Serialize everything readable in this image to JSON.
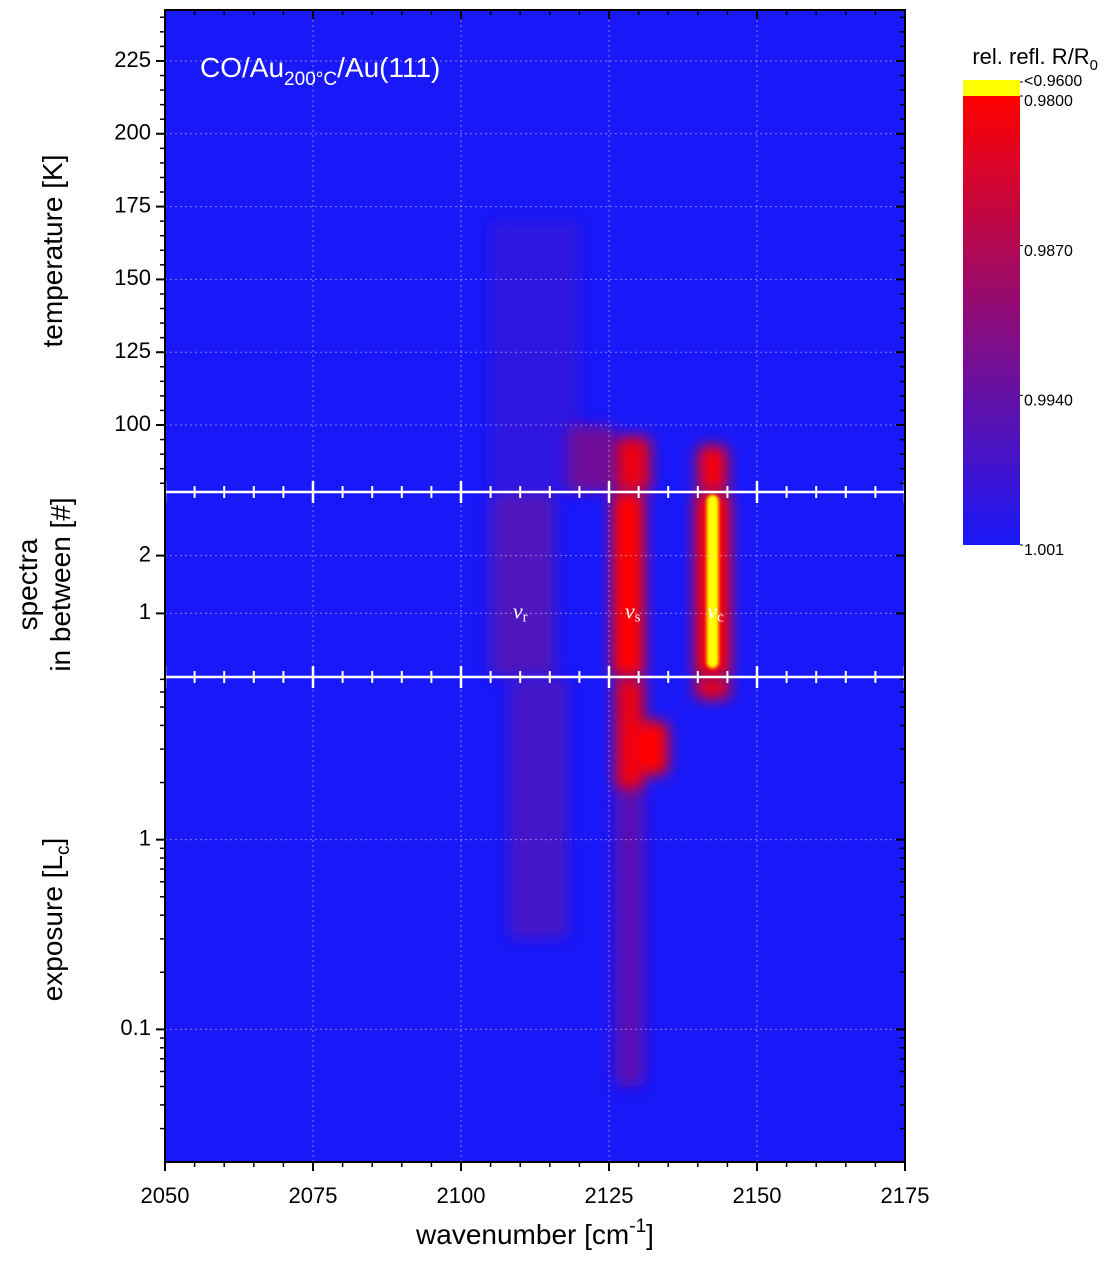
{
  "chart_data": {
    "type": "heatmap",
    "title": {
      "text": "CO/Au",
      "sub": "200°C",
      "rest": "/Au(111)"
    },
    "xlabel": {
      "text": "wavenumber [cm",
      "sup": "-1",
      "rest": "]"
    },
    "xlim": [
      2050,
      2175
    ],
    "xticks": [
      2050,
      2075,
      2100,
      2125,
      2150,
      2175
    ],
    "xminorticks": [
      2055,
      2060,
      2065,
      2070,
      2080,
      2085,
      2090,
      2095,
      2105,
      2110,
      2115,
      2120,
      2130,
      2135,
      2140,
      2145,
      2155,
      2160,
      2165,
      2170
    ],
    "grid": true,
    "panels": [
      {
        "ylabel": [
          {
            "text": "temperature [K]"
          }
        ],
        "ylim": [
          77,
          242.5
        ],
        "log": false,
        "yticks": [
          100,
          125,
          150,
          175,
          200,
          225
        ],
        "yminorticks": [
          80,
          85,
          90,
          95,
          105,
          110,
          115,
          120,
          130,
          135,
          140,
          145,
          155,
          160,
          165,
          170,
          180,
          185,
          190,
          195,
          205,
          210,
          215,
          220,
          230,
          235,
          240
        ]
      },
      {
        "ylabel": [
          {
            "text": "spectra"
          },
          {
            "text": "in between [#]"
          }
        ],
        "ylim": [
          -0.1,
          3.1
        ],
        "log": false,
        "yticks": [
          1,
          2
        ],
        "yminorticks": []
      },
      {
        "ylabel": [
          {
            "text": "exposure [L",
            "sub": "c",
            "rest": "]"
          }
        ],
        "ylim": [
          0.02,
          7.2
        ],
        "log": true,
        "yticks": [
          0.1,
          1
        ],
        "yminorticks": [
          0.03,
          0.04,
          0.05,
          0.06,
          0.07,
          0.08,
          0.09,
          0.2,
          0.3,
          0.4,
          0.5,
          0.6,
          0.7,
          0.8,
          0.9,
          2,
          3,
          4,
          5,
          6,
          7
        ]
      }
    ],
    "colorscale": [
      [
        0.98,
        "#ff0000"
      ],
      [
        1.001,
        "#1818f8"
      ]
    ],
    "below_color": "#ffff00",
    "background": 1.001,
    "colorbar": {
      "title": {
        "text": "rel. refl. R/R",
        "sub": "0"
      },
      "ticks": [
        {
          "value": 0.96,
          "label": "<0.9600"
        },
        {
          "value": 0.98,
          "label": "0.9800"
        },
        {
          "value": 0.987,
          "label": "0.9870"
        },
        {
          "value": 0.994,
          "label": "0.9940"
        },
        1.001
      ]
    },
    "bands": [
      {
        "panel": 0,
        "x": [
          2105,
          2120
        ],
        "y": [
          77,
          170
        ],
        "value": 0.999
      },
      {
        "panel": 0,
        "x": [
          2118,
          2126
        ],
        "y": [
          77,
          100
        ],
        "value": 0.993
      },
      {
        "panel": 0,
        "x": [
          2126,
          2132
        ],
        "y": [
          77,
          96
        ],
        "value": 0.982
      },
      {
        "panel": 0,
        "x": [
          2140,
          2145
        ],
        "y": [
          77,
          93
        ],
        "value": 0.981
      },
      {
        "panel": 1,
        "x": [
          2105,
          2116
        ],
        "y": [
          -0.1,
          3.1
        ],
        "value": 0.996
      },
      {
        "panel": 1,
        "x": [
          2125.5,
          2131
        ],
        "y": [
          -0.1,
          3.1
        ],
        "value": 0.98
      },
      {
        "panel": 1,
        "x": [
          2139.5,
          2145.5
        ],
        "y": [
          -0.1,
          3.1
        ],
        "value": 0.98
      },
      {
        "panel": 1,
        "x": [
          2141.5,
          2143.5
        ],
        "y": [
          0.05,
          3.05
        ],
        "value": 0.955
      },
      {
        "panel": 2,
        "x": [
          2108,
          2118
        ],
        "y": [
          0.3,
          7.2
        ],
        "value": 0.997
      },
      {
        "panel": 2,
        "x": [
          2126,
          2131
        ],
        "y": [
          0.05,
          1.8
        ],
        "value": 0.995
      },
      {
        "panel": 2,
        "x": [
          2126,
          2131
        ],
        "y": [
          1.8,
          7.2
        ],
        "value": 0.982
      },
      {
        "panel": 2,
        "x": [
          2129,
          2135
        ],
        "y": [
          2.2,
          4.2
        ],
        "value": 0.98
      },
      {
        "panel": 2,
        "x": [
          2139.5,
          2145.5
        ],
        "y": [
          5.5,
          7.2
        ],
        "value": 0.982
      }
    ],
    "annotations": [
      {
        "text": "ν",
        "sub": "r",
        "panel": 1,
        "x": 2110,
        "y": 1
      },
      {
        "text": "ν",
        "sub": "s",
        "panel": 1,
        "x": 2129,
        "y": 1
      },
      {
        "text": "ν",
        "sub": "c",
        "panel": 1,
        "x": 2143,
        "y": 1
      }
    ]
  }
}
